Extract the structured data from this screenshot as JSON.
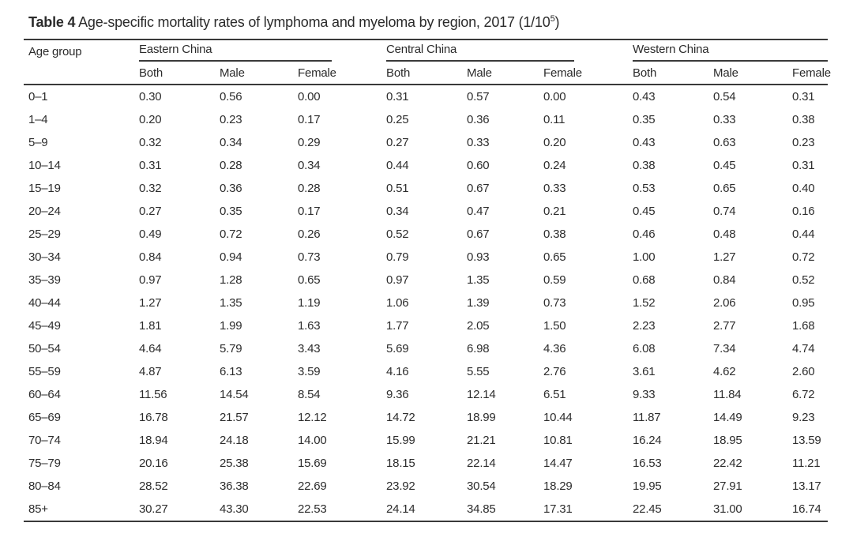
{
  "table": {
    "title_label": "Table 4",
    "title_text": " Age-specific mortality rates of lymphoma and myeloma by region, 2017 (1/10",
    "title_superscript": "5",
    "title_suffix": ")",
    "age_group_header": "Age group",
    "groups": [
      {
        "label": "Eastern China"
      },
      {
        "label": "Central China"
      },
      {
        "label": "Western China"
      }
    ],
    "sub_headers": [
      "Both",
      "Male",
      "Female"
    ],
    "rows": [
      {
        "age": "0–1",
        "values": [
          "0.30",
          "0.56",
          "0.00",
          "0.31",
          "0.57",
          "0.00",
          "0.43",
          "0.54",
          "0.31"
        ]
      },
      {
        "age": "1–4",
        "values": [
          "0.20",
          "0.23",
          "0.17",
          "0.25",
          "0.36",
          "0.11",
          "0.35",
          "0.33",
          "0.38"
        ]
      },
      {
        "age": "5–9",
        "values": [
          "0.32",
          "0.34",
          "0.29",
          "0.27",
          "0.33",
          "0.20",
          "0.43",
          "0.63",
          "0.23"
        ]
      },
      {
        "age": "10–14",
        "values": [
          "0.31",
          "0.28",
          "0.34",
          "0.44",
          "0.60",
          "0.24",
          "0.38",
          "0.45",
          "0.31"
        ]
      },
      {
        "age": "15–19",
        "values": [
          "0.32",
          "0.36",
          "0.28",
          "0.51",
          "0.67",
          "0.33",
          "0.53",
          "0.65",
          "0.40"
        ]
      },
      {
        "age": "20–24",
        "values": [
          "0.27",
          "0.35",
          "0.17",
          "0.34",
          "0.47",
          "0.21",
          "0.45",
          "0.74",
          "0.16"
        ]
      },
      {
        "age": "25–29",
        "values": [
          "0.49",
          "0.72",
          "0.26",
          "0.52",
          "0.67",
          "0.38",
          "0.46",
          "0.48",
          "0.44"
        ]
      },
      {
        "age": "30–34",
        "values": [
          "0.84",
          "0.94",
          "0.73",
          "0.79",
          "0.93",
          "0.65",
          "1.00",
          "1.27",
          "0.72"
        ]
      },
      {
        "age": "35–39",
        "values": [
          "0.97",
          "1.28",
          "0.65",
          "0.97",
          "1.35",
          "0.59",
          "0.68",
          "0.84",
          "0.52"
        ]
      },
      {
        "age": "40–44",
        "values": [
          "1.27",
          "1.35",
          "1.19",
          "1.06",
          "1.39",
          "0.73",
          "1.52",
          "2.06",
          "0.95"
        ]
      },
      {
        "age": "45–49",
        "values": [
          "1.81",
          "1.99",
          "1.63",
          "1.77",
          "2.05",
          "1.50",
          "2.23",
          "2.77",
          "1.68"
        ]
      },
      {
        "age": "50–54",
        "values": [
          "4.64",
          "5.79",
          "3.43",
          "5.69",
          "6.98",
          "4.36",
          "6.08",
          "7.34",
          "4.74"
        ]
      },
      {
        "age": "55–59",
        "values": [
          "4.87",
          "6.13",
          "3.59",
          "4.16",
          "5.55",
          "2.76",
          "3.61",
          "4.62",
          "2.60"
        ]
      },
      {
        "age": "60–64",
        "values": [
          "11.56",
          "14.54",
          "8.54",
          "9.36",
          "12.14",
          "6.51",
          "9.33",
          "11.84",
          "6.72"
        ]
      },
      {
        "age": "65–69",
        "values": [
          "16.78",
          "21.57",
          "12.12",
          "14.72",
          "18.99",
          "10.44",
          "11.87",
          "14.49",
          "9.23"
        ]
      },
      {
        "age": "70–74",
        "values": [
          "18.94",
          "24.18",
          "14.00",
          "15.99",
          "21.21",
          "10.81",
          "16.24",
          "18.95",
          "13.59"
        ]
      },
      {
        "age": "75–79",
        "values": [
          "20.16",
          "25.38",
          "15.69",
          "18.15",
          "22.14",
          "14.47",
          "16.53",
          "22.42",
          "11.21"
        ]
      },
      {
        "age": "80–84",
        "values": [
          "28.52",
          "36.38",
          "22.69",
          "23.92",
          "30.54",
          "18.29",
          "19.95",
          "27.91",
          "13.17"
        ]
      },
      {
        "age": "85+",
        "values": [
          "30.27",
          "43.30",
          "22.53",
          "24.14",
          "34.85",
          "17.31",
          "22.45",
          "31.00",
          "16.74"
        ]
      }
    ]
  },
  "colors": {
    "background": "#ffffff",
    "text": "#2b2b2b",
    "rule": "#3a3a3a"
  }
}
